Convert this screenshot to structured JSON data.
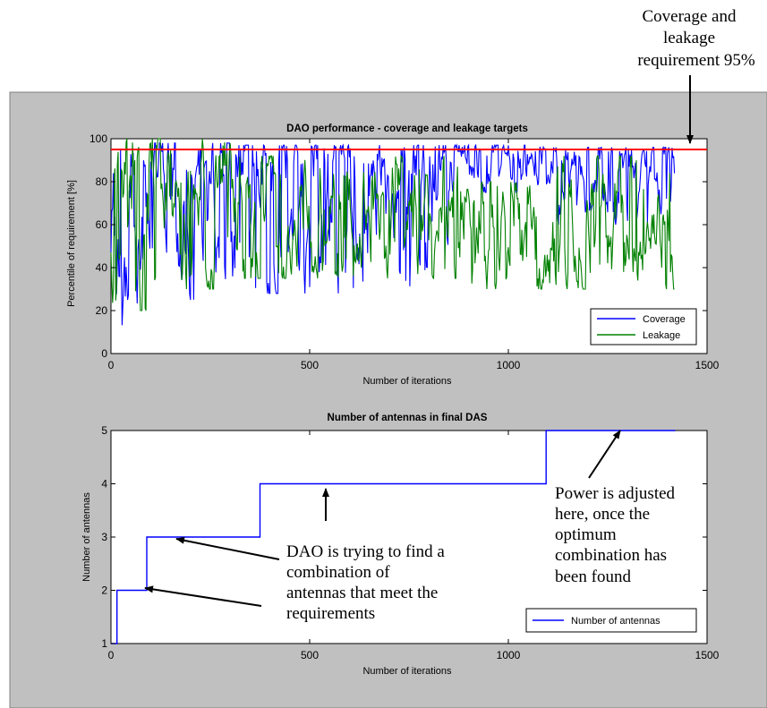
{
  "colors": {
    "figure_bg": "#c0c0c0",
    "axes_bg": "#ffffff",
    "coverage": "#0000ff",
    "leakage": "#008000",
    "requirement_line": "#ff0000",
    "antennas": "#0000ff"
  },
  "annotations": {
    "requirement_line1": "Coverage and",
    "requirement_line2": "leakage",
    "requirement_line3": "requirement 95%",
    "dao_line1": "DAO is trying to find a",
    "dao_line2": "combination of",
    "dao_line3": "antennas that meet the",
    "dao_line4": "requirements",
    "power_line1": "Power is adjusted",
    "power_line2": "here, once the",
    "power_line3": "optimum",
    "power_line4": "combination has",
    "power_line5": "been found"
  },
  "chart_data": [
    {
      "type": "line",
      "title": "DAO performance - coverage and leakage targets",
      "xlabel": "Number of iterations",
      "ylabel": "Percentile of requirement [%]",
      "xlim": [
        0,
        1500
      ],
      "ylim": [
        0,
        100
      ],
      "xticks": [
        "0",
        "500",
        "1000",
        "1500"
      ],
      "yticks": [
        "0",
        "20",
        "40",
        "60",
        "80",
        "100"
      ],
      "legend_position": "bottom-right",
      "grid": false,
      "series": [
        {
          "name": "Coverage",
          "color": "#0000ff",
          "segments": [
            {
              "x_range": [
                0,
                90
              ],
              "y_min": 12,
              "y_max": 100,
              "mean": 55
            },
            {
              "x_range": [
                90,
                320
              ],
              "y_min": 25,
              "y_max": 98,
              "mean": 82
            },
            {
              "x_range": [
                320,
                880
              ],
              "y_min": 28,
              "y_max": 97,
              "mean": 88
            },
            {
              "x_range": [
                880,
                1100
              ],
              "y_min": 75,
              "y_max": 97,
              "mean": 92
            },
            {
              "x_range": [
                1100,
                1420
              ],
              "y_min": 60,
              "y_max": 96,
              "mean": 88
            }
          ]
        },
        {
          "name": "Leakage",
          "color": "#008000",
          "segments": [
            {
              "x_range": [
                0,
                90
              ],
              "y_min": 20,
              "y_max": 100,
              "mean": 75
            },
            {
              "x_range": [
                90,
                320
              ],
              "y_min": 30,
              "y_max": 100,
              "mean": 68
            },
            {
              "x_range": [
                320,
                880
              ],
              "y_min": 35,
              "y_max": 92,
              "mean": 62
            },
            {
              "x_range": [
                880,
                1100
              ],
              "y_min": 30,
              "y_max": 80,
              "mean": 52
            },
            {
              "x_range": [
                1100,
                1420
              ],
              "y_min": 30,
              "y_max": 92,
              "mean": 52
            }
          ]
        }
      ],
      "reference_lines": [
        {
          "y": 95,
          "color": "#ff0000"
        }
      ]
    },
    {
      "type": "line",
      "title": "Number of antennas in final DAS",
      "xlabel": "Number of iterations",
      "ylabel": "Number of antennas",
      "xlim": [
        0,
        1500
      ],
      "ylim": [
        1,
        5
      ],
      "xticks": [
        "0",
        "500",
        "1000",
        "1500"
      ],
      "yticks": [
        "1",
        "2",
        "3",
        "4",
        "5"
      ],
      "legend_position": "bottom-right",
      "grid": false,
      "series": [
        {
          "name": "Number of antennas",
          "color": "#0000ff",
          "step": true,
          "x": [
            0,
            15,
            15,
            90,
            90,
            375,
            375,
            1095,
            1095,
            1420
          ],
          "y": [
            1,
            1,
            2,
            2,
            3,
            3,
            4,
            4,
            5,
            5
          ]
        }
      ]
    }
  ]
}
